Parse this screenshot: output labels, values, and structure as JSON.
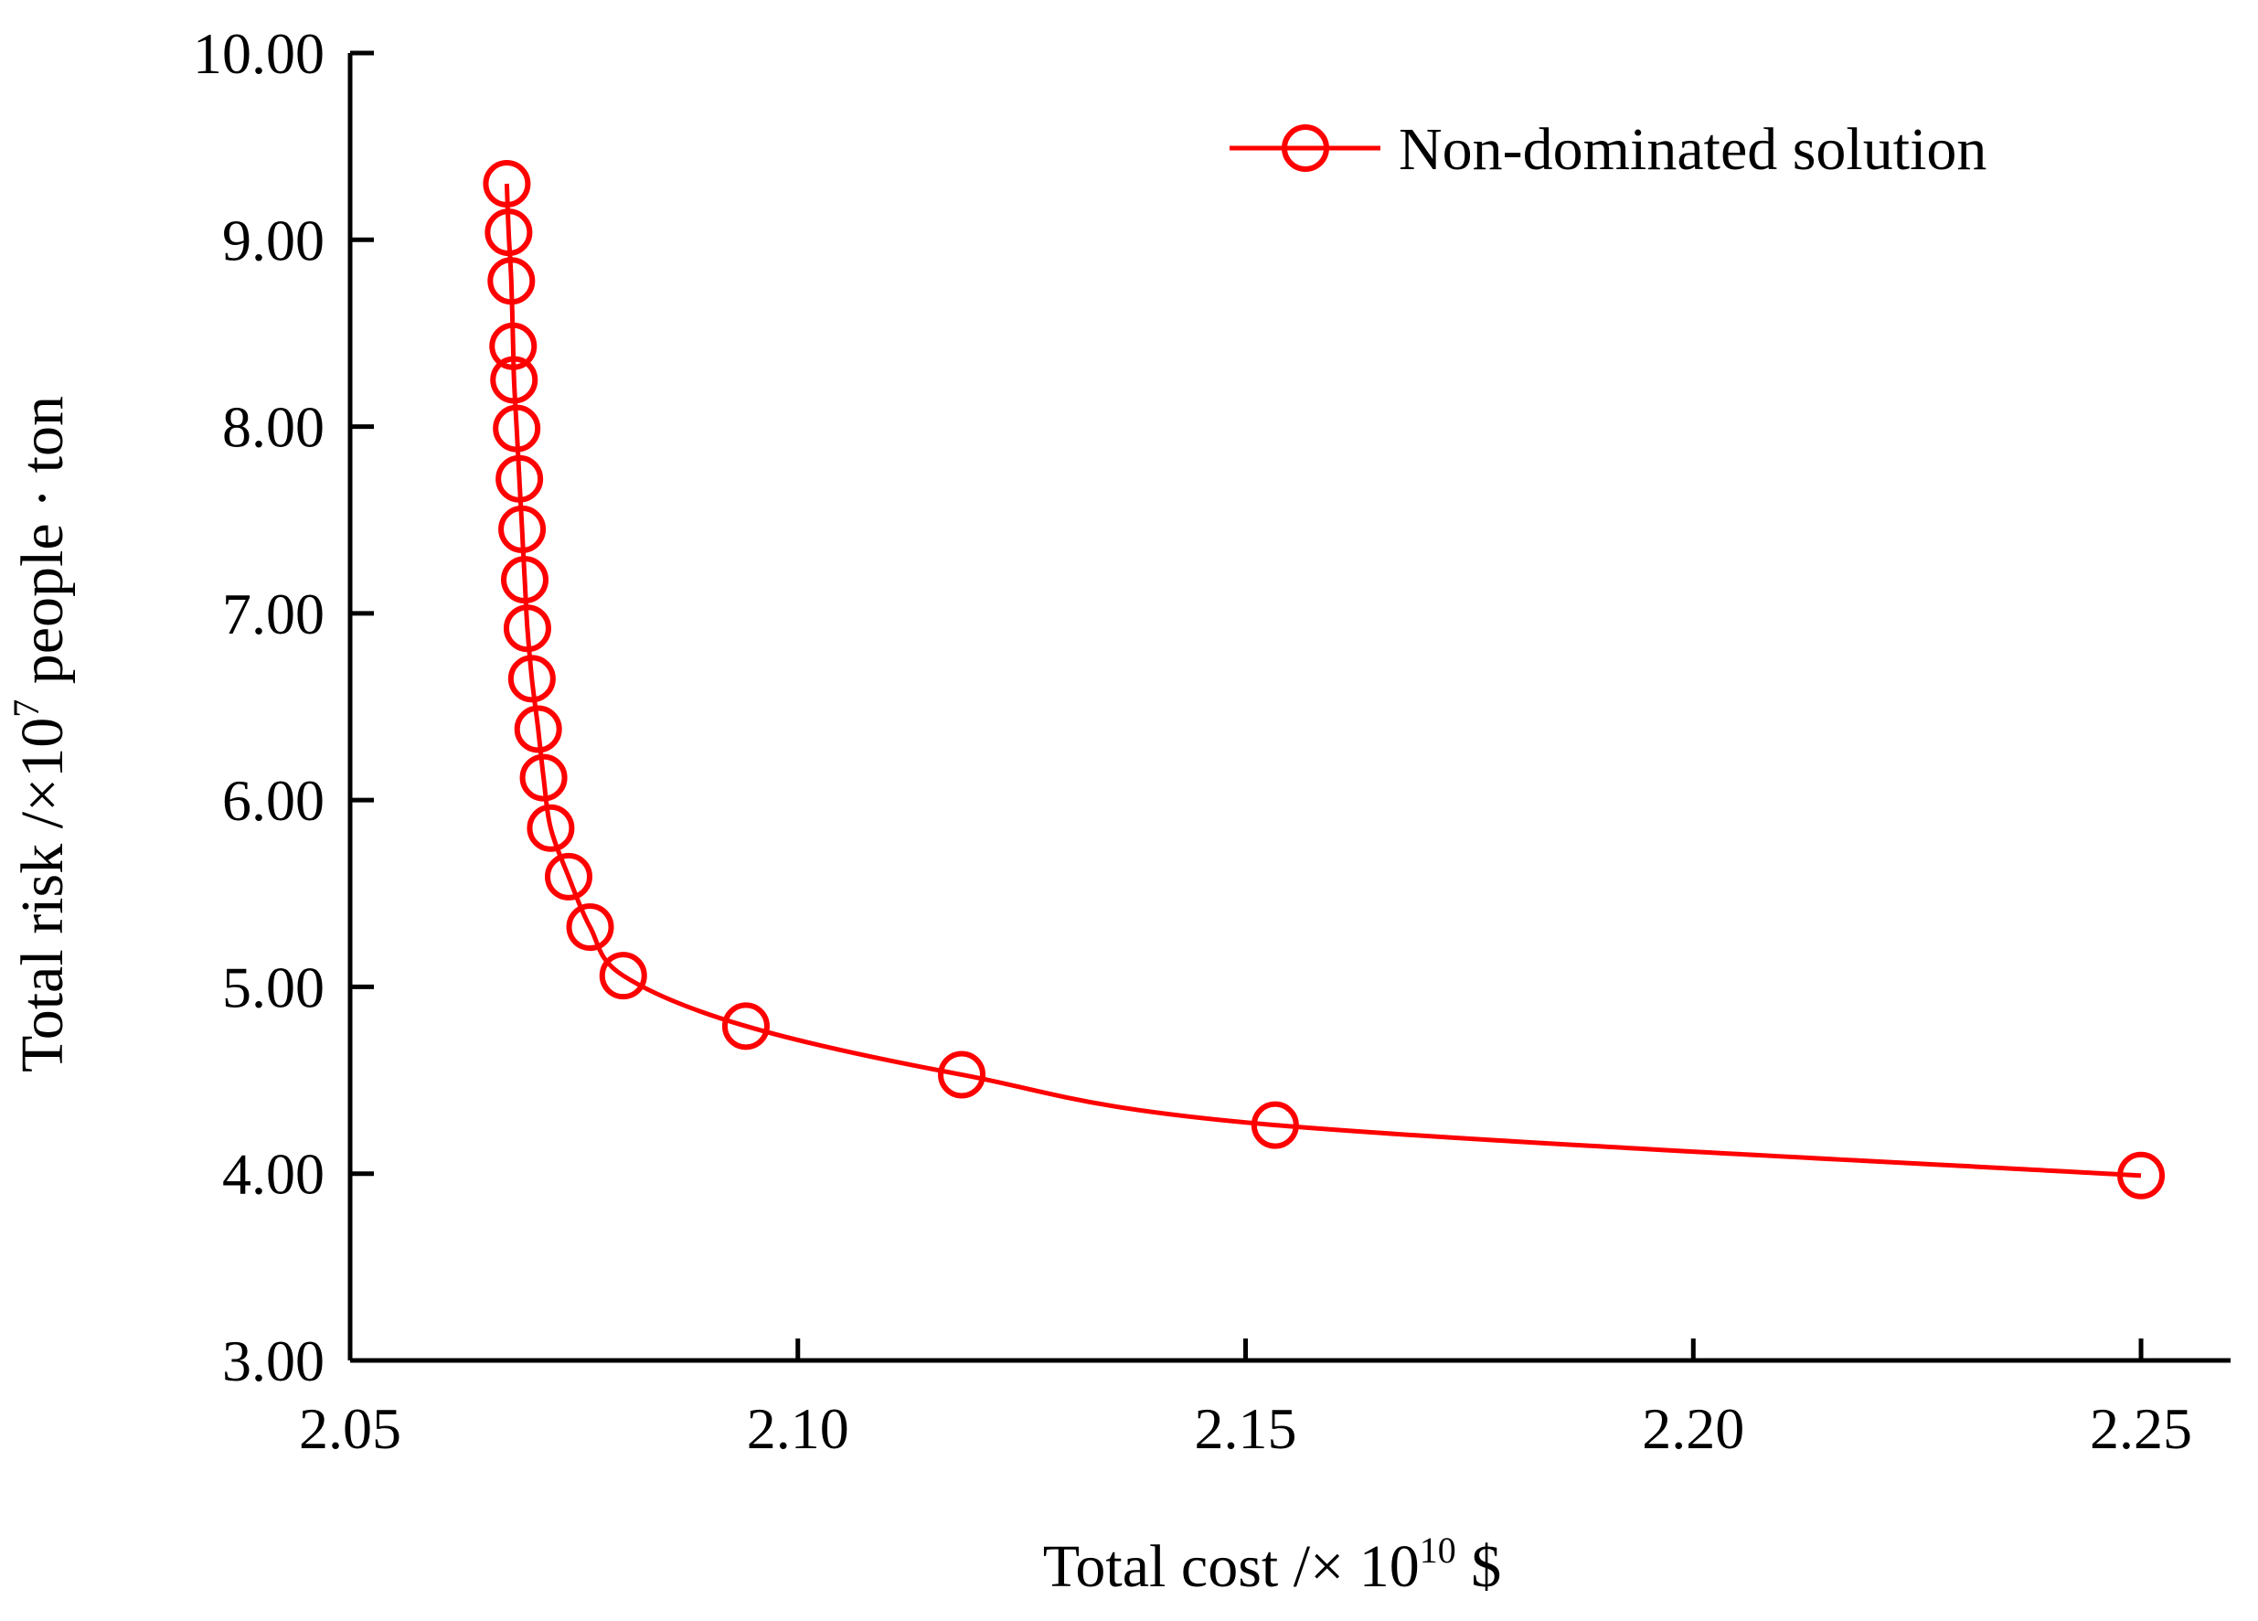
{
  "chart_data": {
    "type": "line",
    "title": "",
    "xlabel": "Total cost /× 10^10 $",
    "xlabel_parts": {
      "prefix": "Total cost /× 10",
      "exp": "10",
      "suffix": " $"
    },
    "ylabel": "Total risk /×10^7 people · ton",
    "ylabel_parts": {
      "prefix": "Total risk /×10",
      "exp": "7",
      "suffix": " people · ton"
    },
    "xlim": [
      2.05,
      2.26
    ],
    "ylim": [
      3.0,
      10.0
    ],
    "xticks": [
      "2.05",
      "2.10",
      "2.15",
      "2.20",
      "2.25"
    ],
    "xtick_values": [
      2.05,
      2.1,
      2.15,
      2.2,
      2.25
    ],
    "yticks": [
      "3.00",
      "4.00",
      "5.00",
      "6.00",
      "7.00",
      "8.00",
      "9.00",
      "10.00"
    ],
    "ytick_values": [
      3,
      4,
      5,
      6,
      7,
      8,
      9,
      10
    ],
    "grid": false,
    "legend_position": "top-right",
    "series": [
      {
        "name": "Non-dominated solution",
        "color": "#ff0000",
        "marker": "open-circle",
        "x": [
          2.0675,
          2.0677,
          2.068,
          2.0682,
          2.0683,
          2.0686,
          2.0689,
          2.0692,
          2.0695,
          2.0698,
          2.0703,
          2.071,
          2.0716,
          2.0724,
          2.0744,
          2.0768,
          2.0805,
          2.0942,
          2.1183,
          2.1533,
          2.25
        ],
        "values": [
          9.3,
          9.04,
          8.78,
          8.43,
          8.25,
          7.99,
          7.72,
          7.45,
          7.18,
          6.92,
          6.65,
          6.38,
          6.12,
          5.85,
          5.59,
          5.32,
          5.06,
          4.79,
          4.53,
          4.26,
          3.99
        ]
      }
    ]
  }
}
